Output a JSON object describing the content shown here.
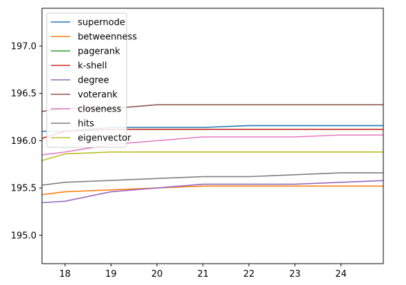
{
  "chart_data": {
    "type": "line",
    "xlim": [
      17.5,
      24.92
    ],
    "ylim": [
      194.7,
      197.4
    ],
    "xticks": [
      18,
      19,
      20,
      21,
      22,
      23,
      24
    ],
    "yticks": [
      195.0,
      195.5,
      196.0,
      196.5,
      197.0
    ],
    "xtick_labels": [
      "18",
      "19",
      "20",
      "21",
      "22",
      "23",
      "24"
    ],
    "ytick_labels": [
      "195.0",
      "195.5",
      "196.0",
      "196.5",
      "197.0"
    ],
    "x": [
      17,
      18,
      19,
      20,
      21,
      22,
      23,
      24,
      25
    ],
    "legend_position": "upper-left",
    "grid": false,
    "series": [
      {
        "name": "supernode",
        "color": "#1f77b4",
        "values": [
          196.1,
          196.1,
          196.14,
          196.14,
          196.14,
          196.16,
          196.16,
          196.16,
          196.16
        ]
      },
      {
        "name": "betweenness",
        "color": "#ff7f0e",
        "values": [
          195.4,
          195.46,
          195.48,
          195.5,
          195.52,
          195.52,
          195.52,
          195.52,
          195.52
        ]
      },
      {
        "name": "pagerank",
        "color": "#2ca02c",
        "values": [
          195.95,
          196.1,
          196.12,
          196.12,
          196.12,
          196.12,
          196.12,
          196.12,
          196.12
        ]
      },
      {
        "name": "k-shell",
        "color": "#d62728",
        "values": [
          195.95,
          196.1,
          196.12,
          196.12,
          196.12,
          196.12,
          196.12,
          196.12,
          196.12
        ]
      },
      {
        "name": "degree",
        "color": "#9467bd",
        "values": [
          195.33,
          195.36,
          195.46,
          195.5,
          195.54,
          195.54,
          195.54,
          195.56,
          195.58
        ]
      },
      {
        "name": "voterank",
        "color": "#8c564b",
        "values": [
          196.28,
          196.34,
          196.34,
          196.38,
          196.38,
          196.38,
          196.38,
          196.38,
          196.38
        ]
      },
      {
        "name": "closeness",
        "color": "#e377c2",
        "values": [
          195.82,
          195.88,
          195.96,
          196.0,
          196.04,
          196.04,
          196.04,
          196.06,
          196.06
        ]
      },
      {
        "name": "hits",
        "color": "#7f7f7f",
        "values": [
          195.5,
          195.56,
          195.58,
          195.6,
          195.62,
          195.62,
          195.64,
          195.66,
          195.66
        ]
      },
      {
        "name": "eigenvector",
        "color": "#bcbd22",
        "values": [
          195.72,
          195.86,
          195.88,
          195.88,
          195.88,
          195.88,
          195.88,
          195.88,
          195.88
        ]
      }
    ]
  }
}
